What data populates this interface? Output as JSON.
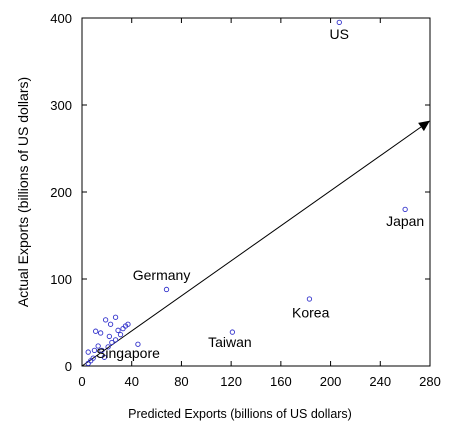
{
  "chart_data": {
    "type": "scatter",
    "xlabel": "Predicted Exports (billions of US dollars)",
    "ylabel": "Actual Exports (billions of US dollars)",
    "xlim": [
      0,
      280
    ],
    "ylim": [
      0,
      400
    ],
    "x_ticks": [
      0,
      40,
      80,
      120,
      160,
      200,
      240,
      280
    ],
    "y_ticks": [
      0,
      100,
      200,
      300,
      400
    ],
    "grid": false,
    "marker": "open-circle",
    "marker_color": "#3333cc",
    "points": [
      {
        "x": 207,
        "y": 395
      },
      {
        "x": 260,
        "y": 180
      },
      {
        "x": 68,
        "y": 88
      },
      {
        "x": 183,
        "y": 77
      },
      {
        "x": 121,
        "y": 39
      },
      {
        "x": 45,
        "y": 25
      },
      {
        "x": 5,
        "y": 3
      },
      {
        "x": 7,
        "y": 6
      },
      {
        "x": 9,
        "y": 9
      },
      {
        "x": 5,
        "y": 16
      },
      {
        "x": 10,
        "y": 18
      },
      {
        "x": 13,
        "y": 23
      },
      {
        "x": 16,
        "y": 18
      },
      {
        "x": 18,
        "y": 10
      },
      {
        "x": 21,
        "y": 22
      },
      {
        "x": 22,
        "y": 34
      },
      {
        "x": 24,
        "y": 27
      },
      {
        "x": 11,
        "y": 40
      },
      {
        "x": 15,
        "y": 38
      },
      {
        "x": 19,
        "y": 53
      },
      {
        "x": 23,
        "y": 48
      },
      {
        "x": 27,
        "y": 56
      },
      {
        "x": 27,
        "y": 30
      },
      {
        "x": 29,
        "y": 41
      },
      {
        "x": 31,
        "y": 36
      },
      {
        "x": 33,
        "y": 43
      },
      {
        "x": 35,
        "y": 46
      },
      {
        "x": 37,
        "y": 48
      }
    ],
    "reference_line": {
      "from": [
        0,
        0
      ],
      "to": [
        280,
        282
      ]
    },
    "annotations": [
      {
        "text": "US",
        "x": 207,
        "y": 376
      },
      {
        "text": "Japan",
        "x": 260,
        "y": 161
      },
      {
        "text": "Germany",
        "x": 64,
        "y": 99
      },
      {
        "text": "Korea",
        "x": 184,
        "y": 56
      },
      {
        "text": "Taiwan",
        "x": 119,
        "y": 22
      },
      {
        "text": "Singapore",
        "x": 37,
        "y": 9
      }
    ]
  }
}
